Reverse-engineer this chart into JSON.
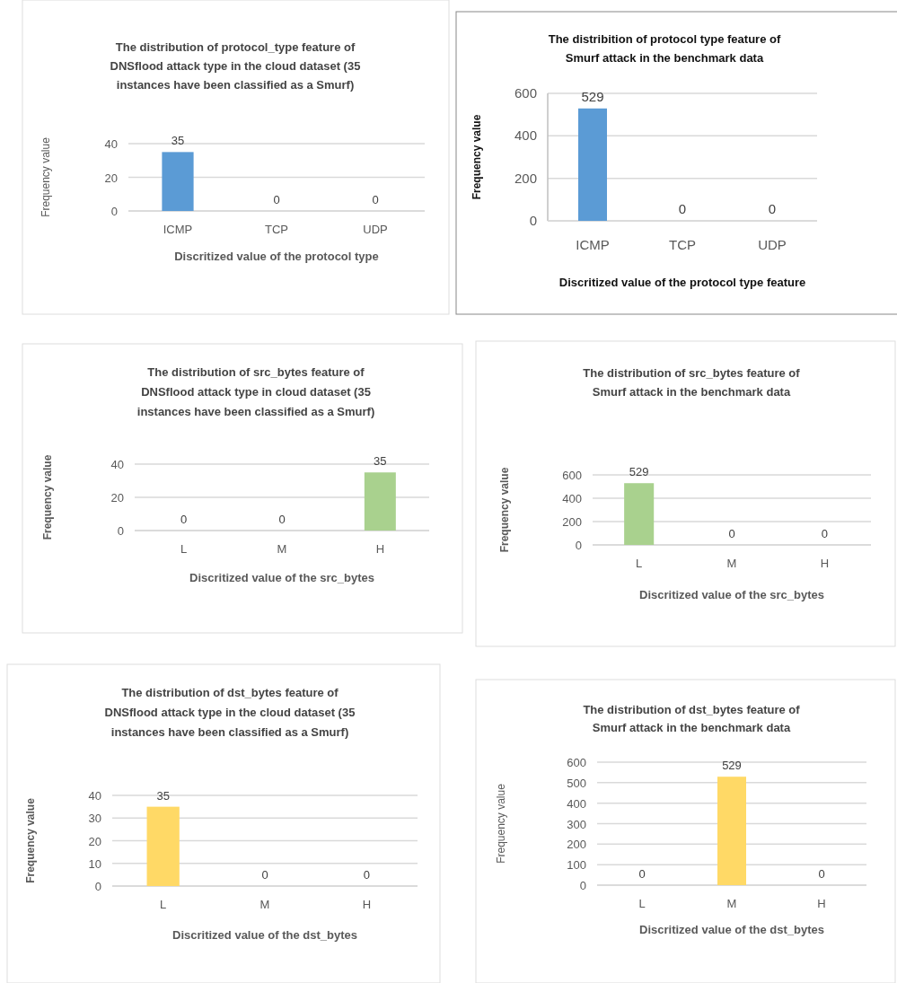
{
  "chart_data": [
    {
      "type": "bar",
      "title": "The distribution of protocol_type feature of DNSflood attack type in the cloud dataset (35 instances have been classified as a Smurf)",
      "xlabel": "Discritized value of the protocol type",
      "ylabel": "Frequency value",
      "categories": [
        "ICMP",
        "TCP",
        "UDP"
      ],
      "values": [
        35,
        0,
        0
      ],
      "color": "#5b9bd5",
      "ylim": [
        0,
        40
      ],
      "yticks": [
        0,
        20,
        40
      ],
      "grid": "y",
      "data_labels": true
    },
    {
      "type": "bar",
      "title": "The distribition of protocol type feature of Smurf attack in the benchmark data",
      "xlabel": "Discritized value of the protocol type feature",
      "ylabel": "Frequency value",
      "categories": [
        "ICMP",
        "TCP",
        "UDP"
      ],
      "values": [
        529,
        0,
        0
      ],
      "color": "#5b9bd5",
      "ylim": [
        0,
        600
      ],
      "yticks": [
        0,
        200,
        400,
        600
      ],
      "grid": "y",
      "data_labels": true
    },
    {
      "type": "bar",
      "title": "The distribution of src_bytes feature of DNSflood attack type in cloud dataset (35 instances have been classified as a Smurf)",
      "xlabel": "Discritized value of the src_bytes",
      "ylabel": "Frequency value",
      "categories": [
        "L",
        "M",
        "H"
      ],
      "values": [
        0,
        0,
        35
      ],
      "color": "#a9d18e",
      "ylim": [
        0,
        40
      ],
      "yticks": [
        0,
        20,
        40
      ],
      "grid": "y",
      "data_labels": true
    },
    {
      "type": "bar",
      "title": "The distribution of src_bytes feature of Smurf attack in the benchmark data",
      "xlabel": "Discritized value of the src_bytes",
      "ylabel": "Frequency value",
      "categories": [
        "L",
        "M",
        "H"
      ],
      "values": [
        529,
        0,
        0
      ],
      "color": "#a9d18e",
      "ylim": [
        0,
        600
      ],
      "yticks": [
        0,
        200,
        400,
        600
      ],
      "grid": "y",
      "data_labels": true
    },
    {
      "type": "bar",
      "title": "The distribution of dst_bytes feature of DNSflood attack type in the cloud dataset (35 instances have been classified as a Smurf)",
      "xlabel": "Discritized value of the dst_bytes",
      "ylabel": "Frequency value",
      "categories": [
        "L",
        "M",
        "H"
      ],
      "values": [
        35,
        0,
        0
      ],
      "color": "#ffd966",
      "ylim": [
        0,
        40
      ],
      "yticks": [
        0,
        10,
        20,
        30,
        40
      ],
      "grid": "y",
      "data_labels": true
    },
    {
      "type": "bar",
      "title": "The distribution of dst_bytes feature of Smurf attack in the benchmark data",
      "xlabel": "Discritized value of the dst_bytes",
      "ylabel": "Frequency value",
      "categories": [
        "L",
        "M",
        "H"
      ],
      "values": [
        0,
        529,
        0
      ],
      "color": "#ffd966",
      "ylim": [
        0,
        600
      ],
      "yticks": [
        0,
        100,
        200,
        300,
        400,
        500,
        600
      ],
      "grid": "y",
      "data_labels": true
    }
  ]
}
